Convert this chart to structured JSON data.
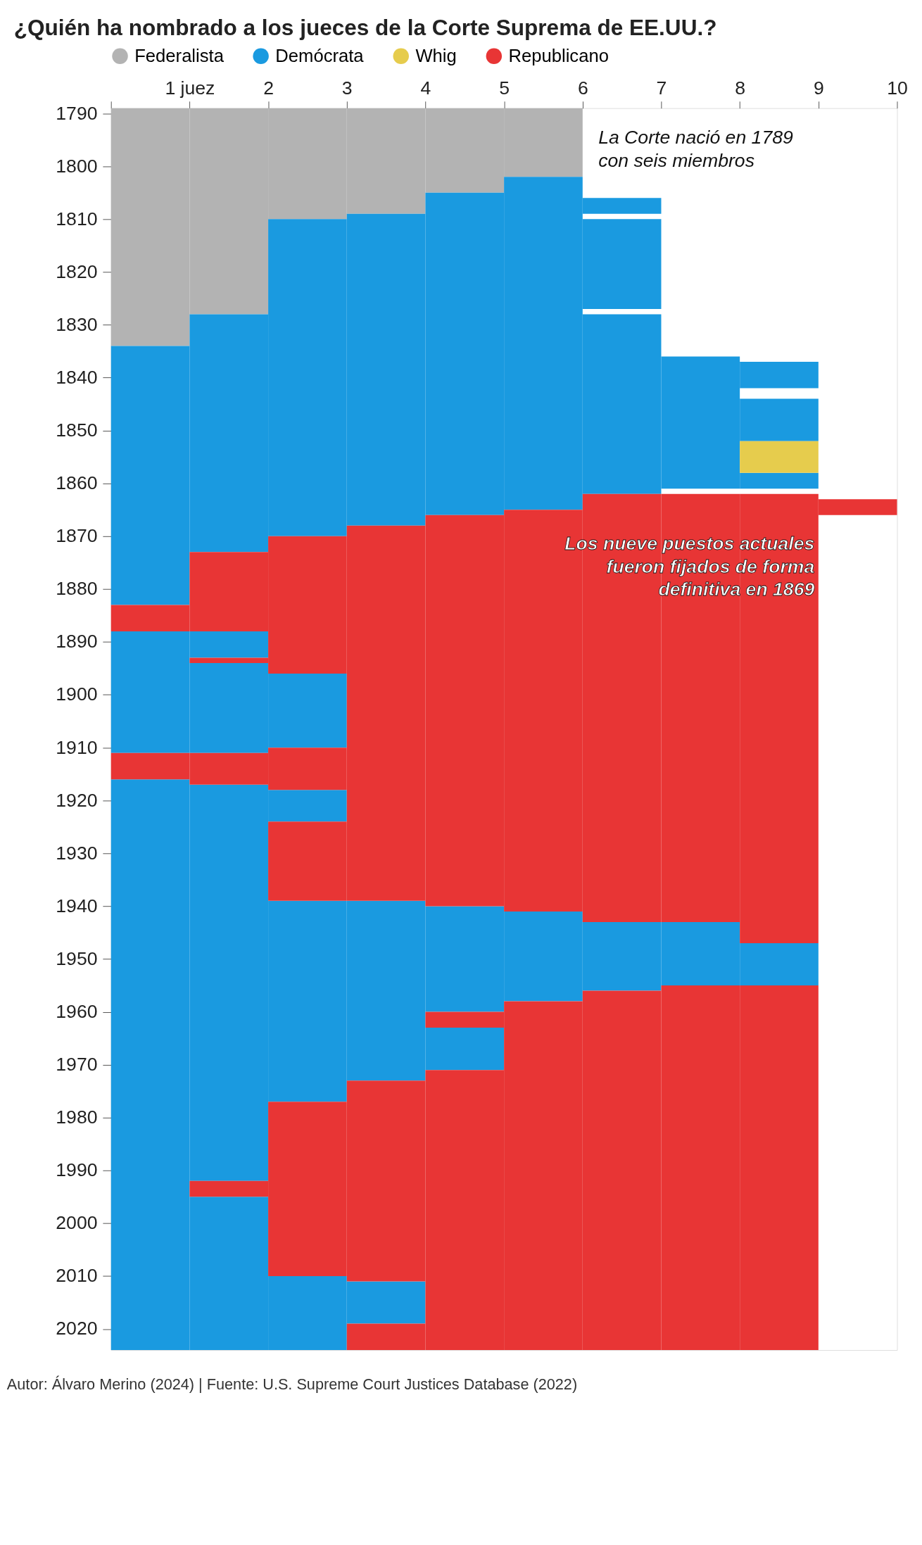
{
  "chart_data": {
    "type": "bar",
    "title": "¿Quién ha nombrado a los jueces de la Corte Suprema de EE.UU.?",
    "categories": [
      "1 juez",
      "2",
      "3",
      "4",
      "5",
      "6",
      "7",
      "8",
      "9",
      "10"
    ],
    "ylim": [
      2024,
      1789
    ],
    "yticks": [
      1790,
      1800,
      1810,
      1820,
      1830,
      1840,
      1850,
      1860,
      1870,
      1880,
      1890,
      1900,
      1910,
      1920,
      1930,
      1940,
      1950,
      1960,
      1970,
      1980,
      1990,
      2000,
      2010,
      2020
    ],
    "legend": "top",
    "grid": false,
    "series": [
      {
        "name": "Federalista",
        "color": "#b3b3b3",
        "base": [
          1789,
          1789,
          1789,
          1789,
          1789,
          1789,
          null,
          null,
          null,
          null
        ],
        "values": [
          45,
          39,
          21,
          20,
          16,
          13,
          null,
          null,
          null,
          null
        ]
      },
      {
        "name": "Demócrata",
        "color": "#1a9ae0",
        "base": [
          1834,
          1828,
          1810,
          1809,
          1805,
          1802,
          1806,
          1836,
          1837,
          null
        ],
        "values": [
          49,
          45,
          60,
          59,
          61,
          63,
          3,
          25,
          5,
          null
        ]
      },
      {
        "color": "#1a9ae0",
        "base": [
          1888,
          1888,
          1896,
          1939,
          1940,
          1941,
          1810,
          1943,
          1844,
          null
        ],
        "values": [
          23,
          5,
          14,
          34,
          20,
          17,
          17,
          12,
          8,
          null
        ]
      },
      {
        "color": "#1a9ae0",
        "base": [
          1916,
          1894,
          1918,
          2011,
          1963,
          null,
          1828,
          null,
          1858,
          null
        ],
        "values": [
          108,
          17,
          6,
          8,
          8,
          null,
          34,
          null,
          3,
          null
        ]
      },
      {
        "color": "#1a9ae0",
        "base": [
          null,
          1917,
          1939,
          null,
          null,
          null,
          1943,
          null,
          1947,
          null
        ],
        "values": [
          null,
          75,
          38,
          null,
          null,
          null,
          13,
          null,
          8,
          null
        ]
      },
      {
        "color": "#1a9ae0",
        "base": [
          null,
          1995,
          2010,
          null,
          null,
          null,
          null,
          null,
          null,
          null
        ],
        "values": [
          null,
          29,
          14,
          null,
          null,
          null,
          null,
          null,
          null,
          null
        ]
      },
      {
        "name": "Whig",
        "color": "#e6cc4d",
        "base": [
          null,
          null,
          null,
          null,
          null,
          null,
          null,
          null,
          1852,
          null
        ],
        "values": [
          null,
          null,
          null,
          null,
          null,
          null,
          null,
          null,
          6,
          null
        ]
      },
      {
        "name": "Republicano",
        "color": "#e83535",
        "base": [
          1883,
          1873,
          1870,
          1868,
          1866,
          1865,
          1862,
          1862,
          1862,
          1863
        ],
        "values": [
          5,
          15,
          26,
          71,
          74,
          76,
          81,
          81,
          85,
          3
        ]
      },
      {
        "color": "#e83535",
        "base": [
          1911,
          1893,
          1910,
          1973,
          1960,
          1958,
          1956,
          1955,
          1955,
          null
        ],
        "values": [
          5,
          1,
          8,
          38,
          3,
          66,
          68,
          69,
          69,
          null
        ]
      },
      {
        "color": "#e83535",
        "base": [
          null,
          1911,
          1924,
          2019,
          1971,
          null,
          null,
          null,
          null,
          null
        ],
        "values": [
          null,
          6,
          15,
          5,
          53,
          null,
          null,
          null,
          null,
          null
        ]
      },
      {
        "color": "#e83535",
        "base": [
          null,
          1992,
          1977,
          null,
          null,
          null,
          null,
          null,
          null,
          null
        ],
        "values": [
          null,
          3,
          33,
          null,
          null,
          null,
          null,
          null,
          null,
          null
        ]
      }
    ],
    "annotations": [
      "La Corte nació en 1789\ncon seis miembros",
      "Los nueve puestos actuales\nfueron fijados de forma\ndefinitiva en 1869",
      "Autor: Álvaro Merino (2024) | Fuente: U.S. Supreme Court Justices Database (2022)"
    ]
  }
}
